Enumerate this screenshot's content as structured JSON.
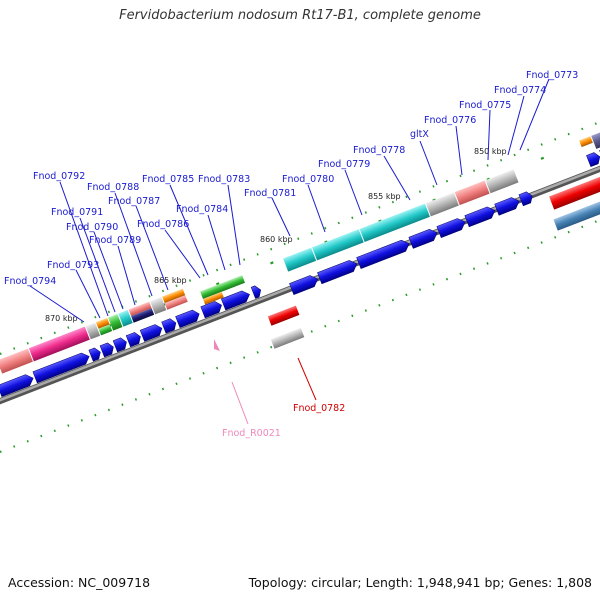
{
  "title": "Fervidobacterium nodosum Rt17-B1, complete genome",
  "footer": {
    "accession": "Accession: NC_009718",
    "summary": "Topology: circular; Length: 1,948,941 bp; Genes: 1,808"
  },
  "kbp_labels": [
    "850 kbp",
    "855 kbp",
    "860 kbp",
    "865 kbp",
    "870 kbp"
  ],
  "gene_labels": [
    "Fnod_0773",
    "Fnod_0774",
    "Fnod_0775",
    "Fnod_0776",
    "gltX",
    "Fnod_0778",
    "Fnod_0779",
    "Fnod_0780",
    "Fnod_0781",
    "Fnod_0783",
    "Fnod_0784",
    "Fnod_0785",
    "Fnod_0786",
    "Fnod_0787",
    "Fnod_0788",
    "Fnod_0789",
    "Fnod_0790",
    "Fnod_0791",
    "Fnod_0792",
    "Fnod_0793",
    "Fnod_0794"
  ],
  "other_labels": {
    "red_gene": "Fnod_0782",
    "rna_gene": "Fnod_R0021"
  },
  "colors": {
    "gene_label": "#1a1ad0",
    "red_label": "#d00000",
    "pink_label": "#ee88bb",
    "backbone": "#888888",
    "tick": "#2a9a2a",
    "arrow_blue": "#1212e0"
  }
}
